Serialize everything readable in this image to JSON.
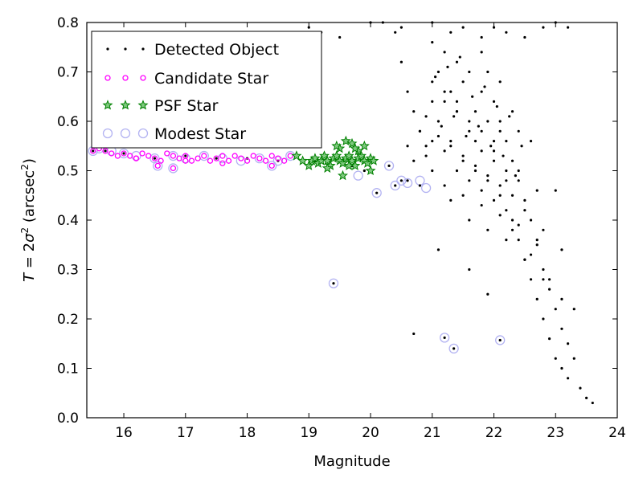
{
  "chart_data": {
    "type": "scatter",
    "xlabel": "Magnitude",
    "ylabel_parts": {
      "pre": "T",
      "eq": " = 2",
      "sigma": "σ",
      "exp": "2",
      "unit": " (arcsec",
      "unit_exp": "2",
      "close": ")"
    },
    "xlim": [
      15.4,
      24
    ],
    "ylim": [
      0,
      0.8
    ],
    "xticks": [
      16,
      17,
      18,
      19,
      20,
      21,
      22,
      23,
      24
    ],
    "yticks": [
      0.0,
      0.1,
      0.2,
      0.3,
      0.4,
      0.5,
      0.6,
      0.7,
      0.8
    ],
    "xtick_labels": [
      "16",
      "17",
      "18",
      "19",
      "20",
      "21",
      "22",
      "23",
      "24"
    ],
    "ytick_labels": [
      "0.0",
      "0.1",
      "0.2",
      "0.3",
      "0.4",
      "0.5",
      "0.6",
      "0.7",
      "0.8"
    ],
    "legend_position": "upper-left",
    "series": [
      {
        "name": "Detected Object",
        "marker": "dot",
        "color": "#000000",
        "x": [
          15.5,
          15.7,
          16.0,
          16.5,
          17.0,
          17.5,
          18.0,
          18.5,
          18.9,
          19.1,
          19.3,
          19.5,
          19.7,
          19.9,
          20.1,
          19.4,
          20.3,
          20.4,
          20.5,
          20.6,
          20.8,
          21.2,
          21.35,
          22.1,
          20.2,
          20.4,
          20.5,
          20.6,
          20.7,
          20.8,
          20.9,
          21.0,
          21.0,
          21.1,
          21.1,
          21.2,
          21.2,
          21.3,
          21.3,
          21.4,
          21.4,
          21.5,
          21.5,
          21.6,
          21.6,
          21.7,
          21.7,
          21.8,
          21.8,
          21.9,
          21.9,
          22.0,
          22.0,
          22.1,
          22.1,
          22.2,
          22.2,
          22.3,
          22.3,
          22.4,
          22.4,
          22.5,
          22.5,
          22.6,
          22.6,
          22.7,
          22.7,
          22.8,
          22.8,
          22.9,
          22.9,
          23.0,
          23.0,
          23.1,
          23.1,
          23.2,
          23.2,
          23.3,
          23.4,
          23.5,
          23.6,
          19.0,
          19.2,
          19.5,
          20.0,
          20.5,
          21.0,
          21.3,
          21.5,
          21.8,
          22.0,
          22.2,
          22.5,
          22.8,
          23.0,
          23.2,
          20.7,
          21.1,
          21.6,
          21.9,
          22.3,
          22.6,
          22.9,
          23.3,
          22.4,
          22.7,
          22.1,
          21.7,
          22.0,
          22.2,
          22.5,
          22.8,
          23.1,
          21.4,
          21.9,
          22.3,
          22.6,
          23.0,
          21.8,
          22.1,
          22.4,
          21.05,
          21.25,
          21.45,
          21.65,
          21.85,
          22.05,
          22.25,
          22.45,
          21.15,
          21.35,
          21.55,
          21.75,
          21.95,
          22.15,
          22.35,
          21.0,
          21.2,
          21.4,
          21.6,
          21.8,
          22.0,
          22.2,
          20.9,
          21.1,
          21.3,
          21.5,
          21.7,
          21.9,
          22.1,
          22.3,
          20.8,
          21.0,
          21.2,
          21.4,
          21.6,
          21.8,
          22.0,
          20.6,
          20.9,
          21.2,
          21.5,
          21.8,
          22.1,
          22.4,
          22.7,
          20.7,
          21.0,
          21.3,
          21.6,
          21.9,
          22.2,
          22.5,
          22.8,
          23.1
        ],
        "y": [
          0.54,
          0.54,
          0.535,
          0.525,
          0.53,
          0.525,
          0.525,
          0.52,
          0.52,
          0.52,
          0.52,
          0.52,
          0.51,
          0.5,
          0.455,
          0.272,
          0.51,
          0.47,
          0.48,
          0.48,
          0.47,
          0.162,
          0.14,
          0.157,
          0.8,
          0.78,
          0.72,
          0.66,
          0.62,
          0.58,
          0.55,
          0.76,
          0.68,
          0.7,
          0.6,
          0.74,
          0.64,
          0.66,
          0.56,
          0.72,
          0.62,
          0.68,
          0.52,
          0.7,
          0.58,
          0.62,
          0.5,
          0.66,
          0.54,
          0.6,
          0.48,
          0.64,
          0.52,
          0.58,
          0.45,
          0.56,
          0.42,
          0.52,
          0.4,
          0.48,
          0.36,
          0.44,
          0.32,
          0.4,
          0.28,
          0.36,
          0.24,
          0.3,
          0.2,
          0.26,
          0.16,
          0.22,
          0.12,
          0.18,
          0.1,
          0.15,
          0.08,
          0.12,
          0.06,
          0.04,
          0.03,
          0.79,
          0.78,
          0.77,
          0.8,
          0.79,
          0.8,
          0.78,
          0.79,
          0.77,
          0.79,
          0.78,
          0.77,
          0.79,
          0.8,
          0.79,
          0.17,
          0.34,
          0.3,
          0.25,
          0.38,
          0.33,
          0.28,
          0.22,
          0.5,
          0.46,
          0.6,
          0.56,
          0.54,
          0.48,
          0.42,
          0.38,
          0.34,
          0.64,
          0.7,
          0.62,
          0.56,
          0.46,
          0.74,
          0.68,
          0.58,
          0.69,
          0.71,
          0.73,
          0.65,
          0.67,
          0.63,
          0.61,
          0.55,
          0.59,
          0.61,
          0.57,
          0.59,
          0.55,
          0.53,
          0.49,
          0.64,
          0.66,
          0.62,
          0.6,
          0.58,
          0.56,
          0.5,
          0.61,
          0.57,
          0.55,
          0.53,
          0.51,
          0.49,
          0.47,
          0.45,
          0.58,
          0.56,
          0.54,
          0.5,
          0.48,
          0.46,
          0.44,
          0.55,
          0.53,
          0.47,
          0.45,
          0.43,
          0.41,
          0.39,
          0.35,
          0.52,
          0.5,
          0.44,
          0.4,
          0.38,
          0.36,
          0.32,
          0.28,
          0.24
        ]
      },
      {
        "name": "Candidate Star",
        "marker": "circle-small",
        "color": "#ff00ff",
        "x": [
          15.5,
          15.6,
          15.7,
          15.8,
          15.9,
          16.0,
          16.1,
          16.2,
          16.3,
          16.4,
          16.5,
          16.6,
          16.7,
          16.8,
          16.9,
          17.0,
          17.1,
          17.2,
          17.3,
          17.4,
          17.5,
          17.6,
          17.7,
          17.8,
          17.9,
          18.0,
          18.1,
          18.2,
          18.3,
          18.4,
          18.5,
          18.6,
          18.7,
          16.55,
          16.8,
          17.6,
          18.4,
          16.2,
          17.0
        ],
        "y": [
          0.54,
          0.545,
          0.54,
          0.535,
          0.53,
          0.535,
          0.53,
          0.525,
          0.535,
          0.53,
          0.525,
          0.52,
          0.535,
          0.53,
          0.525,
          0.53,
          0.52,
          0.525,
          0.53,
          0.52,
          0.525,
          0.53,
          0.52,
          0.53,
          0.525,
          0.52,
          0.53,
          0.525,
          0.52,
          0.53,
          0.525,
          0.52,
          0.53,
          0.51,
          0.505,
          0.515,
          0.51,
          0.525,
          0.52
        ]
      },
      {
        "name": "PSF Star",
        "marker": "star",
        "color": "#008000",
        "x": [
          18.8,
          18.9,
          19.0,
          19.05,
          19.1,
          19.15,
          19.2,
          19.25,
          19.3,
          19.35,
          19.4,
          19.45,
          19.5,
          19.55,
          19.6,
          19.65,
          19.7,
          19.75,
          19.8,
          19.85,
          19.9,
          19.95,
          20.0,
          20.05,
          19.5,
          19.6,
          19.7,
          19.45,
          19.55,
          19.65,
          19.8,
          19.9,
          20.0,
          19.3,
          19.75
        ],
        "y": [
          0.53,
          0.52,
          0.51,
          0.52,
          0.525,
          0.515,
          0.52,
          0.53,
          0.52,
          0.51,
          0.525,
          0.53,
          0.52,
          0.515,
          0.525,
          0.53,
          0.52,
          0.51,
          0.525,
          0.53,
          0.52,
          0.515,
          0.525,
          0.52,
          0.545,
          0.56,
          0.555,
          0.55,
          0.49,
          0.51,
          0.54,
          0.55,
          0.5,
          0.505,
          0.545
        ]
      },
      {
        "name": "Modest Star",
        "marker": "circle-large",
        "color": "#b3b3f2",
        "x": [
          15.5,
          15.6,
          15.8,
          16.0,
          16.2,
          16.5,
          16.8,
          17.0,
          17.3,
          17.6,
          17.9,
          18.2,
          18.5,
          18.7,
          19.4,
          19.8,
          20.1,
          20.3,
          20.4,
          20.5,
          20.6,
          20.8,
          20.9,
          21.2,
          21.35,
          22.1,
          16.55,
          16.8,
          18.4
        ],
        "y": [
          0.54,
          0.545,
          0.54,
          0.535,
          0.53,
          0.525,
          0.53,
          0.525,
          0.53,
          0.525,
          0.52,
          0.525,
          0.52,
          0.53,
          0.272,
          0.49,
          0.455,
          0.51,
          0.47,
          0.48,
          0.475,
          0.48,
          0.465,
          0.162,
          0.14,
          0.157,
          0.51,
          0.505,
          0.51
        ]
      }
    ]
  }
}
